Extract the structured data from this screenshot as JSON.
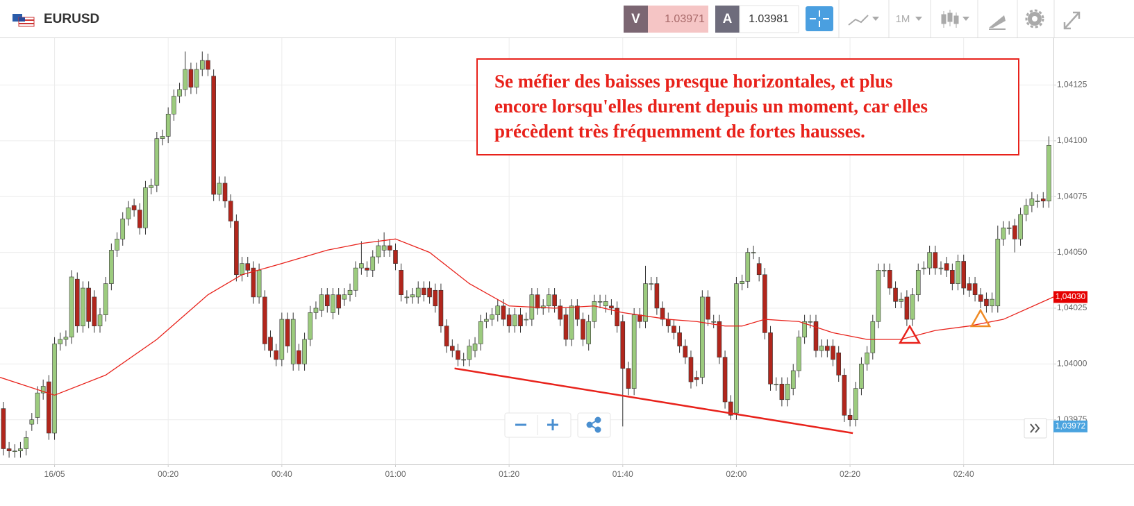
{
  "header": {
    "symbol": "EURUSD",
    "sell_label": "V",
    "sell_price": "1.03971",
    "buy_label": "A",
    "buy_price": "1.03981",
    "timeframe": "1M"
  },
  "chart_data": {
    "type": "candlestick",
    "x": [
      -9,
      -8,
      -7,
      -6,
      -5,
      -4,
      -3,
      -2,
      -1,
      0,
      1,
      2,
      3,
      4,
      5,
      6,
      7,
      8,
      9,
      10,
      11,
      12,
      13,
      14,
      15,
      16,
      17,
      18,
      19,
      20,
      21,
      22,
      23,
      24,
      25,
      26,
      27,
      28,
      29,
      30,
      31,
      32,
      33,
      34,
      35,
      36,
      37,
      38,
      39,
      40,
      41,
      42,
      43,
      44,
      45,
      46,
      47,
      48,
      49,
      50,
      51,
      52,
      53,
      54,
      55,
      56,
      57,
      58,
      59,
      60,
      61,
      62,
      63,
      64,
      65,
      66,
      67,
      68,
      69,
      70,
      71,
      72,
      73,
      74,
      75,
      76,
      77,
      78,
      79,
      80,
      81,
      82,
      83,
      84,
      85,
      86,
      87,
      88,
      89,
      90,
      91,
      92,
      93,
      94,
      95,
      96,
      97,
      98,
      99,
      100,
      101,
      102,
      103,
      104,
      105,
      106,
      107,
      108,
      109,
      110,
      111,
      112,
      113,
      114,
      115,
      116,
      117,
      118,
      119,
      120,
      121,
      122,
      123,
      124,
      125,
      126,
      127,
      128,
      129,
      130,
      131,
      132,
      133,
      134,
      135,
      136,
      137,
      138,
      139,
      140,
      141,
      142,
      143,
      144,
      145,
      146,
      147,
      148,
      149,
      150,
      151,
      152,
      153,
      154,
      155,
      156,
      157,
      158,
      159,
      160,
      161,
      162,
      163,
      164,
      165,
      166,
      167,
      168,
      169,
      170,
      171,
      172,
      173,
      174,
      175
    ],
    "open": [
      1.0398,
      1.03962,
      1.03961,
      1.03961,
      1.03962,
      1.03973,
      1.03976,
      1.03987,
      1.03992,
      1.03969,
      1.04009,
      1.04011,
      1.04012,
      1.04038,
      1.04017,
      1.04034,
      1.0403,
      1.04017,
      1.04022,
      1.04036,
      1.04051,
      1.04056,
      1.04065,
      1.04071,
      1.04069,
      1.04061,
      1.04079,
      1.0408,
      1.04101,
      1.04102,
      1.04112,
      1.0412,
      1.04123,
      1.04132,
      1.04124,
      1.04132,
      1.04136,
      1.04129,
      1.04076,
      1.04081,
      1.04073,
      1.04064,
      1.0404,
      1.04045,
      1.04043,
      1.0403,
      1.0403,
      1.04012,
      1.04006,
      1.04002,
      1.0402,
      1.04,
      1.04006,
      1.04,
      1.04011,
      1.04023,
      1.04024,
      1.04031,
      1.04023,
      1.04031,
      1.04029,
      1.04031,
      1.04033,
      1.04043,
      1.04043,
      1.04042,
      1.04048,
      1.04051,
      1.04053,
      1.04051,
      1.04042,
      1.0403,
      1.0403,
      1.0403,
      1.04034,
      1.04034,
      1.04033,
      1.04033,
      1.04017,
      1.04008,
      1.04006,
      1.04002,
      1.04002,
      1.04006,
      1.04009,
      1.04019,
      1.0402,
      1.04022,
      1.04026,
      1.04022,
      1.04017,
      1.04022,
      1.0402,
      1.0402,
      1.04031,
      1.04025,
      1.04026,
      1.04031,
      1.04026,
      1.04022,
      1.04011,
      1.04026,
      1.0402,
      1.04009,
      1.04019,
      1.04028,
      1.04026,
      1.04026,
      1.04025,
      1.04019,
      1.03998,
      1.03989,
      1.04022,
      1.04019,
      1.04036,
      1.04036,
      1.04025,
      1.0402,
      1.04017,
      1.04014,
      1.04008,
      1.04003,
      1.03994,
      1.03994,
      1.0403,
      1.04019,
      1.04019,
      1.04003,
      1.03983,
      1.03978,
      1.04036,
      1.04037,
      1.0405,
      1.04045,
      1.0404,
      1.04014,
      1.03991,
      1.03991,
      1.03984,
      1.03989,
      1.03997,
      1.04012,
      1.04019,
      1.04019,
      1.04006,
      1.04008,
      1.04008,
      1.04005,
      1.03995,
      1.03977,
      1.03975,
      1.03989,
      1.04,
      1.04005,
      1.04019,
      1.04042,
      1.04042,
      1.04034,
      1.04028,
      1.0403,
      1.0402,
      1.04031,
      1.04043,
      1.04043,
      1.0405,
      1.04043,
      1.04045,
      1.04042,
      1.04036,
      1.04046,
      1.04036,
      1.04036,
      1.04031,
      1.04029,
      1.04026,
      1.04026,
      1.04056,
      1.04061,
      1.04062,
      1.04056,
      1.04067,
      1.04071,
      1.04073,
      1.04074,
      1.04073
    ],
    "high": [
      1.03983,
      1.03965,
      1.03964,
      1.03965,
      1.0397,
      1.03978,
      1.0399,
      1.03993,
      1.03995,
      1.04012,
      1.04014,
      1.04015,
      1.04042,
      1.04041,
      1.04037,
      1.04037,
      1.04033,
      1.04025,
      1.04039,
      1.04054,
      1.04059,
      1.04068,
      1.04073,
      1.04074,
      1.04072,
      1.04082,
      1.04083,
      1.04104,
      1.04105,
      1.04115,
      1.04123,
      1.04126,
      1.0414,
      1.04135,
      1.04135,
      1.0414,
      1.04139,
      1.04132,
      1.04084,
      1.04084,
      1.04076,
      1.04067,
      1.04048,
      1.04048,
      1.04046,
      1.04045,
      1.04033,
      1.04015,
      1.04009,
      1.04023,
      1.04023,
      1.04023,
      1.04009,
      1.04014,
      1.04026,
      1.04028,
      1.04034,
      1.04034,
      1.04034,
      1.04034,
      1.04034,
      1.04036,
      1.04046,
      1.04055,
      1.04046,
      1.04051,
      1.04056,
      1.04059,
      1.04056,
      1.04054,
      1.04045,
      1.04033,
      1.04034,
      1.04037,
      1.04037,
      1.04037,
      1.04036,
      1.04036,
      1.0402,
      1.04011,
      1.04009,
      1.04005,
      1.04011,
      1.04012,
      1.04022,
      1.04023,
      1.04025,
      1.04029,
      1.04029,
      1.04025,
      1.04025,
      1.04025,
      1.04023,
      1.04034,
      1.04034,
      1.04029,
      1.04034,
      1.04034,
      1.04029,
      1.04025,
      1.04029,
      1.04029,
      1.04023,
      1.04022,
      1.04031,
      1.04031,
      1.04031,
      1.04029,
      1.04028,
      1.04022,
      1.04001,
      1.04025,
      1.04025,
      1.04044,
      1.04039,
      1.04039,
      1.04028,
      1.04023,
      1.0402,
      1.04017,
      1.04011,
      1.04006,
      1.03997,
      1.04033,
      1.04033,
      1.04022,
      1.04022,
      1.04006,
      1.03986,
      1.04039,
      1.0404,
      1.04052,
      1.04053,
      1.04048,
      1.04043,
      1.04017,
      1.03994,
      1.03994,
      1.03994,
      1.04,
      1.04015,
      1.04022,
      1.04022,
      1.04022,
      1.04011,
      1.04011,
      1.04011,
      1.04008,
      1.03998,
      1.0398,
      1.03992,
      1.04003,
      1.04008,
      1.04022,
      1.04045,
      1.04045,
      1.04045,
      1.04037,
      1.04032,
      1.04033,
      1.04034,
      1.04045,
      1.04046,
      1.04053,
      1.04053,
      1.04046,
      1.04048,
      1.04045,
      1.04049,
      1.04049,
      1.04039,
      1.04039,
      1.04034,
      1.04032,
      1.04032,
      1.04062,
      1.04064,
      1.04064,
      1.04065,
      1.0407,
      1.04074,
      1.04077,
      1.04076,
      1.04077,
      1.04102
    ],
    "low": [
      1.03959,
      1.03958,
      1.03958,
      1.03958,
      1.03959,
      1.0397,
      1.03973,
      1.03984,
      1.03966,
      1.03966,
      1.04006,
      1.04008,
      1.04009,
      1.04014,
      1.04014,
      1.04016,
      1.04014,
      1.04014,
      1.04019,
      1.04033,
      1.04048,
      1.04053,
      1.04062,
      1.04066,
      1.04058,
      1.04058,
      1.04076,
      1.04077,
      1.04098,
      1.04099,
      1.04109,
      1.04117,
      1.0412,
      1.04121,
      1.04121,
      1.04129,
      1.04129,
      1.04073,
      1.04073,
      1.0407,
      1.04061,
      1.04037,
      1.04037,
      1.04039,
      1.04027,
      1.04027,
      1.04006,
      1.04003,
      1.03999,
      1.03999,
      1.04005,
      1.03997,
      1.03997,
      1.03997,
      1.04008,
      1.0402,
      1.04021,
      1.04023,
      1.0402,
      1.04022,
      1.04026,
      1.04028,
      1.0403,
      1.0404,
      1.04039,
      1.04039,
      1.04045,
      1.04048,
      1.04048,
      1.04042,
      1.04028,
      1.04027,
      1.04027,
      1.04027,
      1.04028,
      1.04027,
      1.04023,
      1.04014,
      1.04005,
      1.04003,
      1.03999,
      1.03999,
      1.03999,
      1.04003,
      1.04006,
      1.04016,
      1.04017,
      1.04019,
      1.04017,
      1.04014,
      1.04014,
      1.04014,
      1.04017,
      1.04017,
      1.04022,
      1.04022,
      1.04023,
      1.04023,
      1.04017,
      1.04008,
      1.04008,
      1.04017,
      1.04008,
      1.04006,
      1.04016,
      1.04025,
      1.04023,
      1.04022,
      1.04014,
      1.03972,
      1.03986,
      1.03986,
      1.04016,
      1.04016,
      1.04033,
      1.04022,
      1.04017,
      1.04014,
      1.04011,
      1.04005,
      1.04,
      1.03989,
      1.0399,
      1.03991,
      1.04017,
      1.04016,
      1.04,
      1.0398,
      1.03975,
      1.03975,
      1.04033,
      1.04034,
      1.04047,
      1.04037,
      1.04011,
      1.03988,
      1.03988,
      1.03981,
      1.03981,
      1.03986,
      1.03994,
      1.04009,
      1.04016,
      1.04003,
      1.04003,
      1.04003,
      1.03999,
      1.03992,
      1.03974,
      1.03972,
      1.03972,
      1.03986,
      1.03997,
      1.04002,
      1.04016,
      1.04039,
      1.04031,
      1.04025,
      1.04025,
      1.04017,
      1.04017,
      1.04028,
      1.0404,
      1.0404,
      1.0404,
      1.0404,
      1.04039,
      1.04033,
      1.04033,
      1.04031,
      1.0403,
      1.04028,
      1.04025,
      1.04023,
      1.04023,
      1.04023,
      1.04053,
      1.04058,
      1.0405,
      1.04053,
      1.04064,
      1.04068,
      1.0407,
      1.0407,
      1.0407
    ],
    "close": [
      1.03962,
      1.03961,
      1.03961,
      1.03962,
      1.03967,
      1.03975,
      1.03987,
      1.0399,
      1.03969,
      1.04009,
      1.04011,
      1.04012,
      1.04039,
      1.04017,
      1.04034,
      1.04019,
      1.04017,
      1.04022,
      1.04036,
      1.04051,
      1.04056,
      1.04065,
      1.0407,
      1.04069,
      1.04061,
      1.04079,
      1.0408,
      1.04101,
      1.04102,
      1.04112,
      1.0412,
      1.04123,
      1.04132,
      1.04124,
      1.04132,
      1.04136,
      1.04132,
      1.04076,
      1.04081,
      1.04073,
      1.04064,
      1.0404,
      1.04045,
      1.04042,
      1.0403,
      1.04042,
      1.04009,
      1.04006,
      1.04002,
      1.0402,
      1.04008,
      1.0402,
      1.04,
      1.04011,
      1.04023,
      1.04025,
      1.04031,
      1.04026,
      1.04031,
      1.04025,
      1.04031,
      1.04033,
      1.04043,
      1.04045,
      1.04042,
      1.04048,
      1.04053,
      1.04053,
      1.04051,
      1.04045,
      1.04031,
      1.0403,
      1.04031,
      1.04034,
      1.04031,
      1.0403,
      1.04026,
      1.04017,
      1.04008,
      1.04006,
      1.04002,
      1.04002,
      1.04008,
      1.04009,
      1.04019,
      1.0402,
      1.04022,
      1.04026,
      1.0402,
      1.04017,
      1.04022,
      1.04017,
      1.0402,
      1.04031,
      1.04025,
      1.04026,
      1.04031,
      1.04026,
      1.0402,
      1.04011,
      1.04026,
      1.0402,
      1.04011,
      1.04019,
      1.04028,
      1.04028,
      1.04028,
      1.04025,
      1.04017,
      1.03998,
      1.03989,
      1.04022,
      1.04019,
      1.04036,
      1.04036,
      1.04025,
      1.0402,
      1.04017,
      1.04014,
      1.04008,
      1.04003,
      1.03992,
      1.03993,
      1.0403,
      1.0402,
      1.04019,
      1.04003,
      1.03983,
      1.03977,
      1.04036,
      1.04037,
      1.0405,
      1.0405,
      1.0404,
      1.04014,
      1.03991,
      1.03991,
      1.03984,
      1.03991,
      1.03997,
      1.04012,
      1.04019,
      1.04019,
      1.04006,
      1.04008,
      1.04006,
      1.04002,
      1.03995,
      1.03977,
      1.03975,
      1.03989,
      1.04,
      1.04005,
      1.04019,
      1.04042,
      1.04042,
      1.04034,
      1.04028,
      1.04029,
      1.0402,
      1.04031,
      1.04042,
      1.04043,
      1.0405,
      1.04043,
      1.04043,
      1.04042,
      1.04036,
      1.04046,
      1.04034,
      1.04033,
      1.04031,
      1.04028,
      1.04026,
      1.04029,
      1.04056,
      1.04061,
      1.04061,
      1.04056,
      1.04067,
      1.04071,
      1.04074,
      1.04073,
      1.04073,
      1.04098
    ],
    "up_color": "#9ccb7e",
    "down_color": "#b1261c",
    "xlim": [
      -9.6,
      175.8
    ],
    "ylim": [
      1.03955,
      1.04146
    ],
    "xticks": [
      {
        "value": 0,
        "label": "16/05"
      },
      {
        "value": 20,
        "label": "00:20"
      },
      {
        "value": 40,
        "label": "00:40"
      },
      {
        "value": 60,
        "label": "01:00"
      },
      {
        "value": 80,
        "label": "01:20"
      },
      {
        "value": 100,
        "label": "01:40"
      },
      {
        "value": 120,
        "label": "02:00"
      },
      {
        "value": 140,
        "label": "02:20"
      },
      {
        "value": 160,
        "label": "02:40"
      }
    ],
    "yticks": [
      {
        "value": 1.03975,
        "label": "1,03975"
      },
      {
        "value": 1.04,
        "label": "1,04000"
      },
      {
        "value": 1.04025,
        "label": "1,04025"
      },
      {
        "value": 1.0405,
        "label": "1,04050"
      },
      {
        "value": 1.04075,
        "label": "1,04075"
      },
      {
        "value": 1.041,
        "label": "1,04100"
      },
      {
        "value": 1.04125,
        "label": "1,04125"
      }
    ],
    "grid": true,
    "moving_average": {
      "x": [
        -9.6,
        0,
        9,
        18,
        27,
        33,
        40,
        48,
        54,
        60,
        66,
        73,
        80,
        88,
        95,
        100,
        108,
        113,
        118,
        121,
        125,
        131,
        137,
        143,
        149,
        155,
        161,
        167,
        175.8
      ],
      "values": [
        1.03994,
        1.03986,
        1.03995,
        1.04011,
        1.04031,
        1.0404,
        1.04045,
        1.04051,
        1.04054,
        1.04056,
        1.0405,
        1.04036,
        1.04026,
        1.04025,
        1.04026,
        1.04023,
        1.0402,
        1.04019,
        1.04017,
        1.04017,
        1.0402,
        1.04019,
        1.04014,
        1.04011,
        1.04011,
        1.04015,
        1.04017,
        1.0402,
        1.0403
      ],
      "color": "#e8221b"
    },
    "trendline": {
      "x": [
        70.4,
        140.5
      ],
      "values": [
        1.03998,
        1.03969
      ],
      "color": "#e8221b"
    },
    "price_markers": [
      {
        "value": 1.0403,
        "label": "1,04030",
        "color": "#e50000"
      },
      {
        "value": 1.03972,
        "label": "1,03972",
        "color": "#4aa3df"
      }
    ],
    "annotation": [
      "Se méfier des baisses presque horizontales, et plus",
      "encore lorsqu'elles durent depuis un moment, car elles",
      "précèdent très fréquemment de fortes hausses."
    ]
  }
}
